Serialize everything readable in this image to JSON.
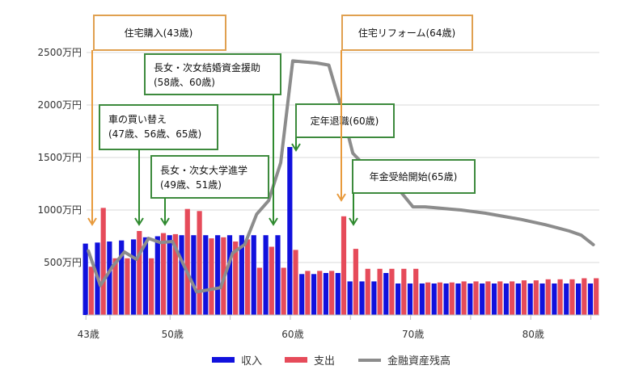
{
  "chart_data": {
    "type": "bar",
    "title": "",
    "xlabel": "",
    "ylabel": "",
    "ylim": [
      0,
      2500
    ],
    "x": [
      43,
      44,
      45,
      46,
      47,
      48,
      49,
      50,
      51,
      52,
      53,
      54,
      55,
      56,
      57,
      58,
      59,
      60,
      61,
      62,
      63,
      64,
      65,
      66,
      67,
      68,
      69,
      70,
      71,
      72,
      73,
      74,
      75,
      76,
      77,
      78,
      79,
      80,
      81,
      82,
      83,
      84,
      85
    ],
    "x_tick_labels": [
      {
        "x": 43,
        "label": "43歳"
      },
      {
        "x": 50,
        "label": "50歳"
      },
      {
        "x": 60,
        "label": "60歳"
      },
      {
        "x": 70,
        "label": "70歳"
      },
      {
        "x": 80,
        "label": "80歳"
      }
    ],
    "y_tick_labels": [
      {
        "y": 500,
        "label": "500万円"
      },
      {
        "y": 1000,
        "label": "1000万円"
      },
      {
        "y": 1500,
        "label": "1500万円"
      },
      {
        "y": 2000,
        "label": "2000万円"
      },
      {
        "y": 2500,
        "label": "2500万円"
      }
    ],
    "grid": true,
    "series": [
      {
        "name": "収入",
        "type": "bar",
        "color": "#1111dd",
        "values": [
          680,
          690,
          700,
          710,
          720,
          740,
          750,
          760,
          760,
          760,
          760,
          760,
          760,
          760,
          760,
          760,
          760,
          1600,
          390,
          390,
          400,
          400,
          320,
          320,
          320,
          400,
          300,
          300,
          300,
          300,
          300,
          300,
          300,
          300,
          300,
          300,
          300,
          300,
          300,
          300,
          300,
          300,
          300
        ]
      },
      {
        "name": "支出",
        "type": "bar",
        "color": "#e64b5a",
        "values": [
          460,
          1020,
          540,
          540,
          800,
          540,
          780,
          770,
          1010,
          990,
          730,
          740,
          700,
          720,
          450,
          650,
          450,
          620,
          420,
          420,
          420,
          940,
          630,
          440,
          440,
          440,
          440,
          440,
          310,
          310,
          310,
          320,
          320,
          320,
          320,
          320,
          330,
          330,
          340,
          340,
          340,
          350,
          350
        ]
      },
      {
        "name": "金融資産残高",
        "type": "line",
        "color": "#8c8c8c",
        "values": [
          610,
          280,
          460,
          600,
          530,
          730,
          690,
          700,
          460,
          220,
          240,
          260,
          590,
          670,
          960,
          1090,
          1450,
          2420,
          2410,
          2400,
          2380,
          1990,
          1540,
          1420,
          1350,
          1270,
          1170,
          1030,
          1030,
          1020,
          1010,
          1000,
          985,
          970,
          950,
          930,
          910,
          885,
          860,
          830,
          800,
          760,
          670
        ]
      }
    ],
    "annotations": [
      {
        "text": [
          "住宅購入(43歳)"
        ],
        "age": 43,
        "color": "#e0a050",
        "arrow_color": "#e89a3c"
      },
      {
        "text": [
          "車の買い替え",
          "(47歳、56歳、65歳)"
        ],
        "age": 47,
        "color": "#3d8a3d",
        "arrow_color": "#2f8a2f"
      },
      {
        "text": [
          "長女・次女大学進学",
          "(49歳、51歳)"
        ],
        "age": 49,
        "color": "#3d8a3d",
        "arrow_color": "#2f8a2f"
      },
      {
        "text": [
          "長女・次女結婚資金援助",
          "(58歳、60歳)"
        ],
        "age": 58,
        "color": "#3d8a3d",
        "arrow_color": "#2f8a2f"
      },
      {
        "text": [
          "定年退職(60歳)"
        ],
        "age": 60,
        "color": "#3d8a3d",
        "arrow_color": "#2f8a2f"
      },
      {
        "text": [
          "住宅リフォーム(64歳)"
        ],
        "age": 64,
        "color": "#e0a050",
        "arrow_color": "#e89a3c"
      },
      {
        "text": [
          "年金受給開始(65歳)"
        ],
        "age": 65,
        "color": "#3d8a3d",
        "arrow_color": "#2f8a2f"
      }
    ],
    "legend": {
      "placement": "bottom-center"
    }
  }
}
